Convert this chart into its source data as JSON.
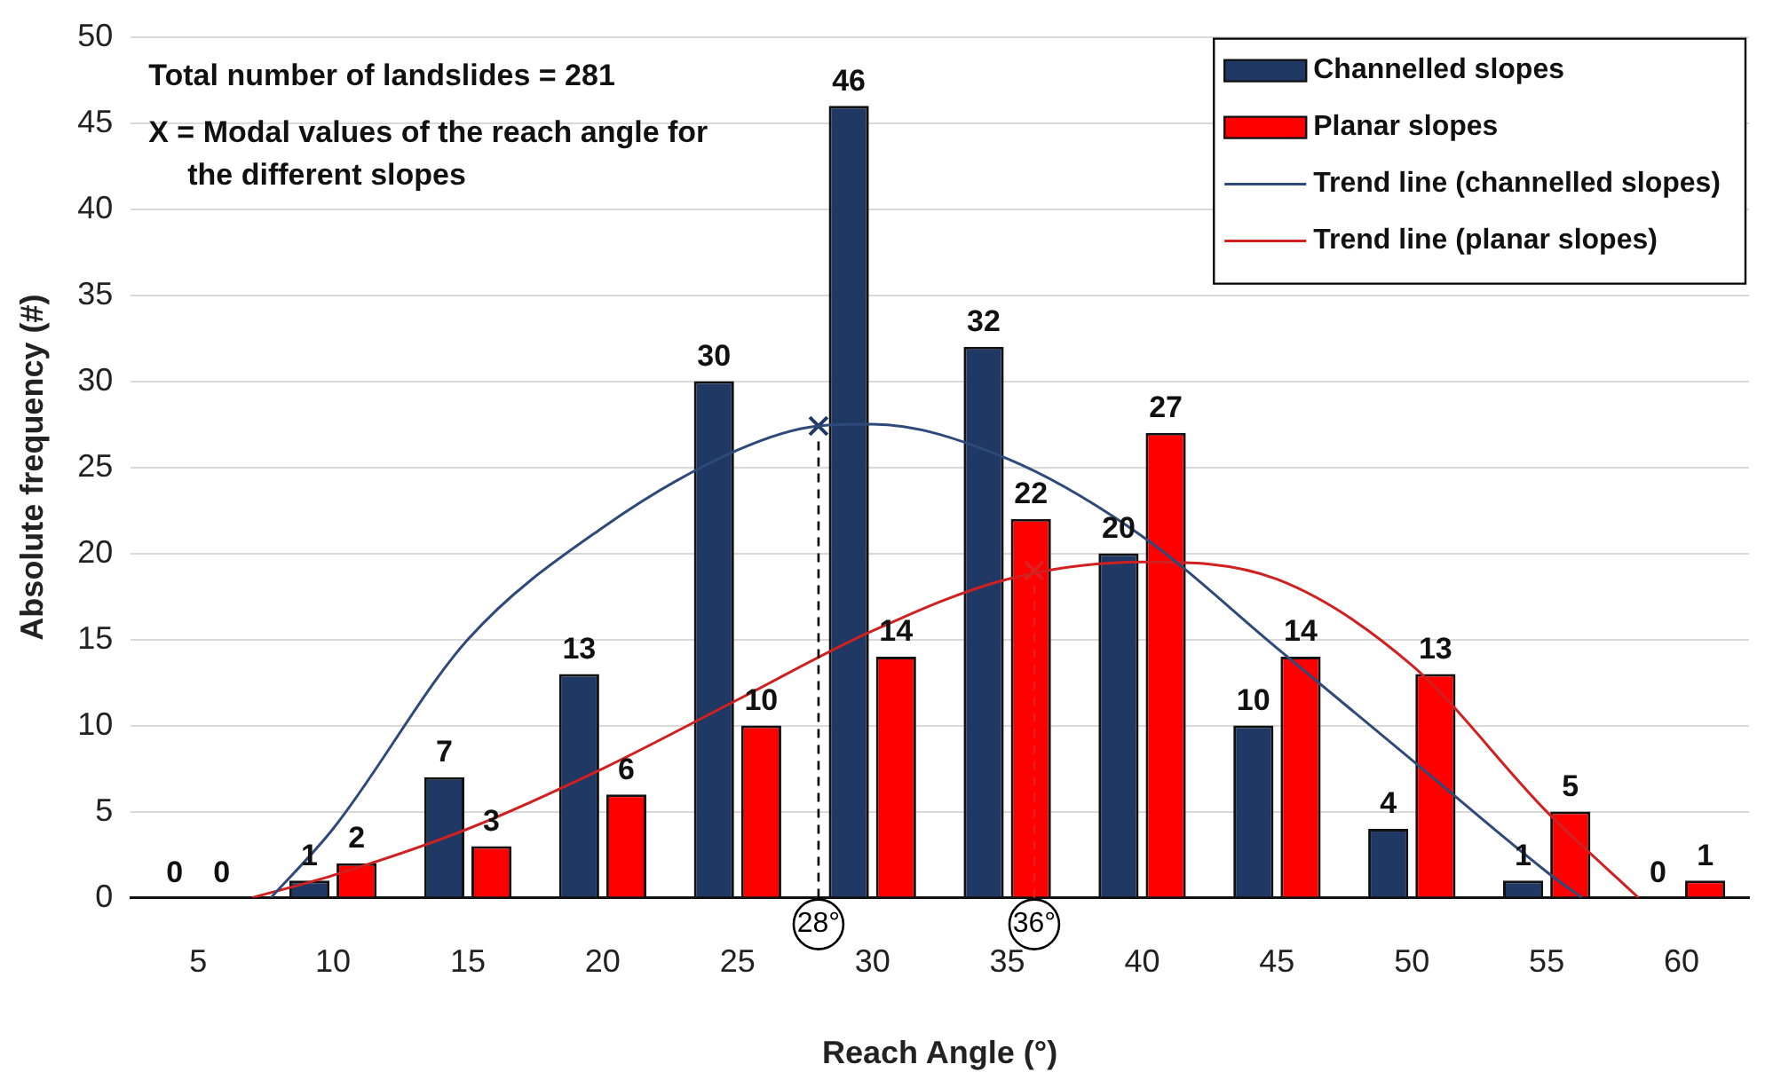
{
  "chart_data": {
    "type": "bar",
    "xlabel": "Reach Angle (°)",
    "ylabel": "Absolute frequency (#)",
    "x": [
      5,
      10,
      15,
      20,
      25,
      30,
      35,
      40,
      45,
      50,
      55,
      60
    ],
    "xlim": [
      2.5,
      62.5
    ],
    "xticks": [
      5,
      10,
      15,
      20,
      25,
      30,
      35,
      40,
      45,
      50,
      55,
      60
    ],
    "ylim": [
      0,
      50
    ],
    "yticks": [
      0,
      5,
      10,
      15,
      20,
      25,
      30,
      35,
      40,
      45,
      50
    ],
    "grid": "y",
    "legend": "top right",
    "series": [
      {
        "name": "Channelled slopes",
        "color": "#1f3864",
        "values": [
          0,
          1,
          7,
          13,
          30,
          46,
          32,
          20,
          10,
          4,
          1,
          0
        ],
        "value_labels": [
          "0",
          "1",
          "7",
          "13",
          "30",
          "46",
          "32",
          "20",
          "10",
          "4",
          "1",
          "0"
        ]
      },
      {
        "name": "Planar slopes",
        "color": "#ff0000",
        "values": [
          0,
          2,
          3,
          6,
          10,
          14,
          22,
          27,
          14,
          13,
          5,
          1
        ],
        "value_labels": [
          "0",
          "2",
          "3",
          "6",
          "10",
          "14",
          "22",
          "27",
          "14",
          "13",
          "5",
          "1"
        ]
      },
      {
        "type": "line",
        "name": "Trend line (channelled slopes)",
        "color": "#2e4a7a",
        "marker": "none",
        "x": [
          7.7,
          10,
          15,
          20,
          25,
          28,
          30,
          35,
          40,
          45,
          50,
          55,
          56.3
        ],
        "values": [
          0,
          4,
          15,
          21.5,
          26,
          27.4,
          27.5,
          25.5,
          21,
          14.5,
          8,
          1.5,
          0
        ]
      },
      {
        "type": "line",
        "name": "Trend line (planar slopes)",
        "color": "#d02020",
        "marker": "none",
        "x": [
          7,
          10,
          15,
          20,
          25,
          30,
          35,
          40,
          45,
          50,
          55,
          58.4
        ],
        "values": [
          0,
          1.3,
          4,
          7.5,
          11.5,
          15.5,
          18.5,
          19.5,
          18.5,
          13.5,
          5,
          0
        ]
      },
      {
        "type": "scatter",
        "color": "#1f3864",
        "marker": "cross",
        "x": [
          28
        ],
        "values": [
          27.4
        ]
      },
      {
        "type": "scatter",
        "color": "#e02020",
        "marker": "cross",
        "x": [
          36
        ],
        "values": [
          19
        ]
      }
    ],
    "ref_lines": [
      {
        "axis": "x",
        "value": 28,
        "label": "28°",
        "color": "#000000",
        "line_style": "dashed"
      },
      {
        "axis": "x",
        "value": 36,
        "label": "36°",
        "color": "#e02020",
        "line_style": "dashed"
      }
    ],
    "annotations": [
      "Total number of landslides = 281",
      "X = Modal values of the reach angle for the different slopes"
    ]
  }
}
